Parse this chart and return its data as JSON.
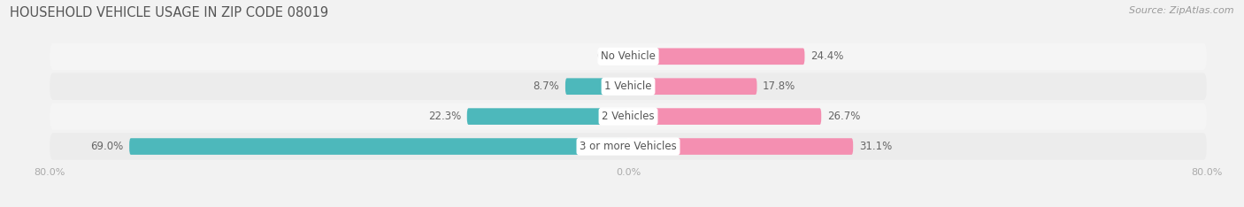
{
  "title": "HOUSEHOLD VEHICLE USAGE IN ZIP CODE 08019",
  "source": "Source: ZipAtlas.com",
  "categories": [
    "No Vehicle",
    "1 Vehicle",
    "2 Vehicles",
    "3 or more Vehicles"
  ],
  "owner_values": [
    0.0,
    8.7,
    22.3,
    69.0
  ],
  "renter_values": [
    24.4,
    17.8,
    26.7,
    31.1
  ],
  "owner_color": "#4db8bb",
  "renter_color": "#f48fb1",
  "row_bg_light": "#f5f5f5",
  "row_bg_dark": "#ececec",
  "title_color": "#555555",
  "source_color": "#999999",
  "label_color": "#666666",
  "category_color": "#555555",
  "tick_color": "#aaaaaa",
  "bg_color": "#f2f2f2",
  "xlim": [
    -80,
    80
  ],
  "bar_height": 0.55,
  "title_fontsize": 10.5,
  "source_fontsize": 8,
  "label_fontsize": 8.5,
  "category_fontsize": 8.5,
  "tick_fontsize": 8,
  "legend_fontsize": 8.5
}
